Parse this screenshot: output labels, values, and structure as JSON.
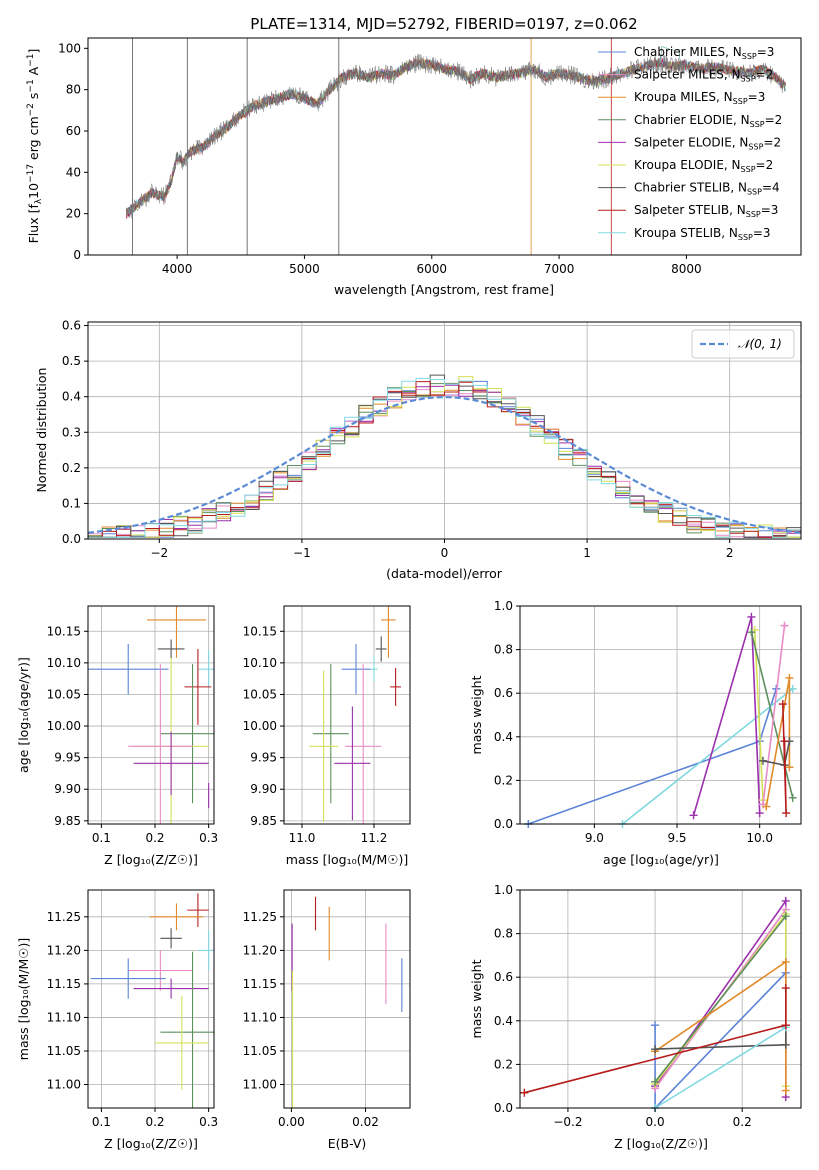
{
  "colors": {
    "chabrier_miles": "#5b83d6",
    "salpeter_miles": "#e88bc7",
    "kroupa_miles": "#e08a2a",
    "chabrier_elodie": "#5e8f5e",
    "salpeter_elodie": "#9b2fae",
    "kroupa_elodie": "#d4e157",
    "chabrier_stelib": "#555555",
    "salpeter_stelib": "#b71c1c",
    "kroupa_stelib": "#80d8e0",
    "normal": "#5b8bd6",
    "grid": "#b0b0b0"
  },
  "chart_data": [
    {
      "id": "spectrum",
      "type": "line",
      "title": "PLATE=1314, MJD=52792, FIBERID=0197, z=0.062",
      "xlabel": "wavelength [Angstrom, rest frame]",
      "ylabel": "Flux [f",
      "ylabel_html": "Flux [f<tspan font-size='9' dy='3'>λ</tspan><tspan dy='-3'>10</tspan><tspan font-size='9' dy='-5'>−17</tspan><tspan dy='5'> erg cm</tspan><tspan font-size='9' dy='-5'>−2</tspan><tspan dy='5'> s</tspan><tspan font-size='9' dy='-5'>−1</tspan><tspan dy='5'> A</tspan><tspan font-size='9' dy='-5'>−1</tspan><tspan dy='5'>]</tspan>",
      "xlim": [
        3300,
        8900
      ],
      "ylim": [
        0,
        105
      ],
      "xticks": [
        4000,
        5000,
        6000,
        7000,
        8000
      ],
      "yticks": [
        0,
        20,
        40,
        60,
        80,
        100
      ],
      "grid": false,
      "legend_position": "upper-right",
      "flux_anchors": {
        "x": [
          3600,
          3700,
          3800,
          3900,
          3950,
          4000,
          4050,
          4100,
          4200,
          4300,
          4400,
          4500,
          4600,
          4700,
          4800,
          4900,
          5000,
          5100,
          5200,
          5300,
          5400,
          5500,
          5600,
          5700,
          5800,
          5900,
          6000,
          6100,
          6200,
          6300,
          6400,
          6500,
          6600,
          6700,
          6800,
          6900,
          7000,
          7100,
          7200,
          7300,
          7400,
          7500,
          7600,
          7700,
          7800,
          7900,
          8000,
          8100,
          8200,
          8300,
          8400,
          8500,
          8600,
          8700,
          8800
        ],
        "y": [
          20,
          25,
          30,
          28,
          35,
          48,
          45,
          50,
          52,
          58,
          62,
          68,
          72,
          74,
          76,
          78,
          76,
          73,
          80,
          86,
          88,
          86,
          88,
          87,
          91,
          93,
          92,
          90,
          89,
          85,
          88,
          86,
          87,
          88,
          90,
          86,
          88,
          87,
          85,
          84,
          86,
          88,
          90,
          92,
          93,
          91,
          92,
          90,
          91,
          90,
          89,
          88,
          90,
          86,
          80
        ]
      },
      "series": [
        {
          "name": "Chabrier MILES, N",
          "nssp": "=3",
          "color_key": "chabrier_miles"
        },
        {
          "name": "Salpeter MILES, N",
          "nssp": "=2",
          "color_key": "salpeter_miles"
        },
        {
          "name": "Kroupa MILES, N",
          "nssp": "=3",
          "color_key": "kroupa_miles"
        },
        {
          "name": "Chabrier ELODIE, N",
          "nssp": "=2",
          "color_key": "chabrier_elodie"
        },
        {
          "name": "Salpeter ELODIE, N",
          "nssp": "=2",
          "color_key": "salpeter_elodie"
        },
        {
          "name": "Kroupa ELODIE, N",
          "nssp": "=2",
          "color_key": "kroupa_elodie"
        },
        {
          "name": "Chabrier STELIB, N",
          "nssp": "=4",
          "color_key": "chabrier_stelib"
        },
        {
          "name": "Salpeter STELIB, N",
          "nssp": "=3",
          "color_key": "salpeter_stelib"
        },
        {
          "name": "Kroupa STELIB, N",
          "nssp": "=3",
          "color_key": "kroupa_stelib"
        }
      ],
      "legend_subscript": "SSP",
      "vertical_lines": [
        {
          "x": 3650,
          "color_key": "chabrier_stelib"
        },
        {
          "x": 4080,
          "color_key": "chabrier_stelib"
        },
        {
          "x": 4550,
          "color_key": "chabrier_stelib"
        },
        {
          "x": 5270,
          "color_key": "chabrier_stelib"
        },
        {
          "x": 6780,
          "color_key": "kroupa_miles"
        },
        {
          "x": 7410,
          "color_key": "salpeter_stelib"
        }
      ]
    },
    {
      "id": "residuals",
      "type": "step",
      "xlabel": "(data-model)/error",
      "ylabel": "Normed distribution",
      "xlim": [
        -2.5,
        2.5
      ],
      "ylim": [
        0,
        0.61
      ],
      "xticks": [
        -2,
        -1,
        0,
        1,
        2
      ],
      "xticklabels": [
        "−2",
        "−1",
        "0",
        "1",
        "2"
      ],
      "yticks": [
        0.0,
        0.1,
        0.2,
        0.3,
        0.4,
        0.5,
        0.6
      ],
      "yticklabels": [
        "0.0",
        "0.1",
        "0.2",
        "0.3",
        "0.4",
        "0.5",
        "0.6"
      ],
      "grid": true,
      "legend": "𝒩(0, 1)",
      "legend_position": "upper-right",
      "bin_width": 0.1,
      "normal": {
        "mean": 0,
        "sd": 1
      }
    },
    {
      "id": "age_vs_Z",
      "type": "errorbar",
      "xlabel": "Z [log₁₀(Z/Z☉)]",
      "ylabel": "age  [log₁₀(age/yr)]",
      "xlim": [
        0.075,
        0.31
      ],
      "ylim": [
        9.845,
        10.19
      ],
      "xticks": [
        0.1,
        0.2,
        0.3
      ],
      "xticklabels": [
        "0.1",
        "0.2",
        "0.3"
      ],
      "yticks": [
        9.85,
        9.9,
        9.95,
        10.0,
        10.05,
        10.1,
        10.15
      ],
      "yticklabels": [
        "9.85",
        "9.90",
        "9.95",
        "10.00",
        "10.05",
        "10.10",
        "10.15"
      ],
      "grid": true,
      "points": [
        {
          "x": 0.24,
          "y": 10.168,
          "xerr": 0.055,
          "yerr": 0.06,
          "color_key": "kroupa_miles"
        },
        {
          "x": 0.23,
          "y": 10.122,
          "xerr": 0.025,
          "yerr": 0.015,
          "color_key": "chabrier_stelib"
        },
        {
          "x": 0.15,
          "y": 10.09,
          "xerr": 0.075,
          "yerr": 0.04,
          "color_key": "chabrier_miles"
        },
        {
          "x": 0.3,
          "y": 10.09,
          "xerr": 0.02,
          "yerr": 0.03,
          "color_key": "kroupa_stelib"
        },
        {
          "x": 0.28,
          "y": 10.062,
          "xerr": 0.025,
          "yerr": 0.06,
          "color_key": "salpeter_stelib"
        },
        {
          "x": 0.27,
          "y": 9.988,
          "xerr": 0.06,
          "yerr": 0.11,
          "color_key": "chabrier_elodie"
        },
        {
          "x": 0.23,
          "y": 9.968,
          "xerr": 0.07,
          "yerr": 0.14,
          "color_key": "kroupa_elodie"
        },
        {
          "x": 0.21,
          "y": 9.968,
          "xerr": 0.06,
          "yerr": 0.13,
          "color_key": "salpeter_miles"
        },
        {
          "x": 0.23,
          "y": 9.941,
          "xerr": 0.07,
          "yerr": 0.05,
          "color_key": "salpeter_elodie"
        },
        {
          "x": 0.3,
          "y": 9.89,
          "xerr": 0.0,
          "yerr": 0.02,
          "color_key": "salpeter_elodie"
        }
      ]
    },
    {
      "id": "age_vs_mass",
      "type": "errorbar",
      "xlabel": "mass [log₁₀(M/M☉)]",
      "xlim": [
        10.95,
        11.3
      ],
      "ylim": [
        9.845,
        10.19
      ],
      "xticks": [
        11.0,
        11.2
      ],
      "xticklabels": [
        "11.0",
        "11.2"
      ],
      "yticks": [
        9.85,
        9.9,
        9.95,
        10.0,
        10.05,
        10.1,
        10.15
      ],
      "yticklabels": [
        "9.85",
        "9.90",
        "9.95",
        "10.00",
        "10.05",
        "10.10",
        "10.15"
      ],
      "grid": true,
      "points": [
        {
          "x": 11.24,
          "y": 10.168,
          "xerr": 0.02,
          "yerr": 0.06,
          "color_key": "kroupa_miles"
        },
        {
          "x": 11.22,
          "y": 10.122,
          "xerr": 0.015,
          "yerr": 0.02,
          "color_key": "chabrier_stelib"
        },
        {
          "x": 11.15,
          "y": 10.09,
          "xerr": 0.04,
          "yerr": 0.04,
          "color_key": "chabrier_miles"
        },
        {
          "x": 11.2,
          "y": 10.09,
          "xerr": 0.01,
          "yerr": 0.02,
          "color_key": "kroupa_stelib"
        },
        {
          "x": 11.26,
          "y": 10.062,
          "xerr": 0.015,
          "yerr": 0.03,
          "color_key": "salpeter_stelib"
        },
        {
          "x": 11.08,
          "y": 9.988,
          "xerr": 0.05,
          "yerr": 0.11,
          "color_key": "chabrier_elodie"
        },
        {
          "x": 11.06,
          "y": 9.968,
          "xerr": 0.04,
          "yerr": 0.12,
          "color_key": "kroupa_elodie"
        },
        {
          "x": 11.17,
          "y": 9.968,
          "xerr": 0.05,
          "yerr": 0.13,
          "color_key": "salpeter_miles"
        },
        {
          "x": 11.14,
          "y": 9.941,
          "xerr": 0.05,
          "yerr": 0.09,
          "color_key": "salpeter_elodie"
        }
      ]
    },
    {
      "id": "weight_vs_age",
      "type": "line",
      "xlabel": "age  [log₁₀(age/yr)]",
      "ylabel": "mass weight",
      "xlim": [
        8.55,
        10.25
      ],
      "ylim": [
        0,
        1.0
      ],
      "xticks": [
        9.0,
        9.5,
        10.0
      ],
      "xticklabels": [
        "9.0",
        "9.5",
        "10.0"
      ],
      "yticks": [
        0,
        0.2,
        0.4,
        0.6,
        0.8,
        1.0
      ],
      "yticklabels": [
        "0.0",
        "0.2",
        "0.4",
        "0.6",
        "0.8",
        "1.0"
      ],
      "grid": true,
      "series": [
        {
          "color_key": "chabrier_miles",
          "x": [
            8.6,
            10.0,
            10.1
          ],
          "y": [
            0.0,
            0.38,
            0.62
          ]
        },
        {
          "color_key": "kroupa_stelib",
          "x": [
            9.17,
            10.2
          ],
          "y": [
            0.0,
            0.62
          ]
        },
        {
          "color_key": "salpeter_elodie",
          "x": [
            9.6,
            9.95,
            10.0
          ],
          "y": [
            0.04,
            0.95,
            0.05
          ]
        },
        {
          "color_key": "kroupa_elodie",
          "x": [
            9.97,
            10.02
          ],
          "y": [
            0.89,
            0.11
          ]
        },
        {
          "color_key": "chabrier_elodie",
          "x": [
            9.95,
            10.2
          ],
          "y": [
            0.88,
            0.12
          ]
        },
        {
          "color_key": "salpeter_miles",
          "x": [
            10.02,
            10.15
          ],
          "y": [
            0.09,
            0.91
          ]
        },
        {
          "color_key": "kroupa_miles",
          "x": [
            10.04,
            10.18,
            10.18
          ],
          "y": [
            0.08,
            0.67,
            0.26
          ]
        },
        {
          "color_key": "chabrier_stelib",
          "x": [
            10.02,
            10.15,
            10.18
          ],
          "y": [
            0.29,
            0.27,
            0.38
          ]
        },
        {
          "color_key": "salpeter_stelib",
          "x": [
            10.14,
            10.16,
            10.15
          ],
          "y": [
            0.55,
            0.05,
            0.38
          ]
        }
      ]
    },
    {
      "id": "mass_vs_Z",
      "type": "errorbar",
      "xlabel": "Z [log₁₀(Z/Z☉)]",
      "ylabel": "mass [log₁₀(M/M☉)]",
      "xlim": [
        0.075,
        0.31
      ],
      "ylim": [
        10.965,
        11.29
      ],
      "xticks": [
        0.1,
        0.2,
        0.3
      ],
      "xticklabels": [
        "0.1",
        "0.2",
        "0.3"
      ],
      "yticks": [
        11.0,
        11.05,
        11.1,
        11.15,
        11.2,
        11.25
      ],
      "yticklabels": [
        "11.00",
        "11.05",
        "11.10",
        "11.15",
        "11.20",
        "11.25"
      ],
      "grid": true,
      "points": [
        {
          "x": 0.28,
          "y": 11.26,
          "xerr": 0.02,
          "yerr": 0.025,
          "color_key": "salpeter_stelib"
        },
        {
          "x": 0.24,
          "y": 11.25,
          "xerr": 0.05,
          "yerr": 0.02,
          "color_key": "kroupa_miles"
        },
        {
          "x": 0.23,
          "y": 11.218,
          "xerr": 0.02,
          "yerr": 0.015,
          "color_key": "chabrier_stelib"
        },
        {
          "x": 0.3,
          "y": 11.2,
          "xerr": 0.02,
          "yerr": 0.03,
          "color_key": "kroupa_stelib"
        },
        {
          "x": 0.21,
          "y": 11.17,
          "xerr": 0.06,
          "yerr": 0.03,
          "color_key": "salpeter_miles"
        },
        {
          "x": 0.15,
          "y": 11.158,
          "xerr": 0.07,
          "yerr": 0.03,
          "color_key": "chabrier_miles"
        },
        {
          "x": 0.23,
          "y": 11.143,
          "xerr": 0.07,
          "yerr": 0.015,
          "color_key": "salpeter_elodie"
        },
        {
          "x": 0.27,
          "y": 11.078,
          "xerr": 0.06,
          "yerr": 0.12,
          "color_key": "chabrier_elodie"
        },
        {
          "x": 0.25,
          "y": 11.062,
          "xerr": 0.05,
          "yerr": 0.07,
          "color_key": "kroupa_elodie"
        }
      ]
    },
    {
      "id": "mass_vs_ebv",
      "type": "errorbar",
      "xlabel": "E(B-V)",
      "xlim": [
        -0.002,
        0.032
      ],
      "ylim": [
        10.965,
        11.29
      ],
      "xticks": [
        0.0,
        0.02
      ],
      "xticklabels": [
        "0.00",
        "0.02"
      ],
      "yticks": [
        11.0,
        11.05,
        11.1,
        11.15,
        11.2,
        11.25
      ],
      "yticklabels": [
        "11.00",
        "11.05",
        "11.10",
        "11.15",
        "11.20",
        "11.25"
      ],
      "grid": true,
      "points": [
        {
          "x": 0.0065,
          "y": 11.255,
          "xerr": 0,
          "yerr": 0.025,
          "color_key": "salpeter_stelib"
        },
        {
          "x": 0.0102,
          "y": 11.225,
          "xerr": 0,
          "yerr": 0.04,
          "color_key": "kroupa_miles"
        },
        {
          "x": 0.0255,
          "y": 11.18,
          "xerr": 0,
          "yerr": 0.06,
          "color_key": "salpeter_miles"
        },
        {
          "x": 0.0298,
          "y": 11.148,
          "xerr": 0,
          "yerr": 0.04,
          "color_key": "chabrier_miles"
        },
        {
          "x": 0.0002,
          "y": 11.19,
          "xerr": 0,
          "yerr": 0.05,
          "color_key": "salpeter_elodie"
        },
        {
          "x": 0.0003,
          "y": 11.05,
          "xerr": 0,
          "yerr": 0.12,
          "color_key": "kroupa_elodie"
        }
      ]
    },
    {
      "id": "weight_vs_Z",
      "type": "line",
      "xlabel": "Z [log₁₀(Z/Z☉)]",
      "ylabel": "mass weight",
      "xlim": [
        -0.31,
        0.335
      ],
      "ylim": [
        0,
        1.0
      ],
      "xticks": [
        -0.2,
        0.0,
        0.2
      ],
      "xticklabels": [
        "−0.2",
        "0.0",
        "0.2"
      ],
      "yticks": [
        0,
        0.2,
        0.4,
        0.6,
        0.8,
        1.0
      ],
      "yticklabels": [
        "0.0",
        "0.2",
        "0.4",
        "0.6",
        "0.8",
        "1.0"
      ],
      "grid": true,
      "series": [
        {
          "color_key": "chabrier_miles",
          "x": [
            0.0,
            0.0,
            0.3
          ],
          "y": [
            0.38,
            0.0,
            0.62
          ]
        },
        {
          "color_key": "salpeter_elodie",
          "x": [
            0.0,
            0.3,
            0.3
          ],
          "y": [
            0.1,
            0.95,
            0.05
          ]
        },
        {
          "color_key": "salpeter_miles",
          "x": [
            0.0,
            0.3
          ],
          "y": [
            0.09,
            0.91
          ]
        },
        {
          "color_key": "kroupa_elodie",
          "x": [
            0.0,
            0.3,
            0.3
          ],
          "y": [
            0.11,
            0.89,
            0.1
          ]
        },
        {
          "color_key": "chabrier_elodie",
          "x": [
            0.0,
            0.3
          ],
          "y": [
            0.12,
            0.88
          ]
        },
        {
          "color_key": "kroupa_miles",
          "x": [
            0.0,
            0.3,
            0.3
          ],
          "y": [
            0.26,
            0.67,
            0.08
          ]
        },
        {
          "color_key": "chabrier_stelib",
          "x": [
            0.0,
            0.3,
            0.3
          ],
          "y": [
            0.27,
            0.29,
            0.38
          ]
        },
        {
          "color_key": "kroupa_stelib",
          "x": [
            0.0,
            0.3
          ],
          "y": [
            0.0,
            0.37
          ]
        },
        {
          "color_key": "salpeter_stelib",
          "x": [
            -0.3,
            0.3,
            0.3
          ],
          "y": [
            0.07,
            0.38,
            0.55
          ]
        }
      ]
    }
  ]
}
